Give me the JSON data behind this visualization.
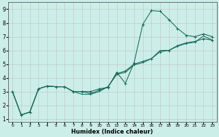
{
  "xlabel": "Humidex (Indice chaleur)",
  "bg_color": "#cceee8",
  "grid_color": "#c0c0c0",
  "line_color": "#1a6b5a",
  "xlim": [
    -0.5,
    23.5
  ],
  "ylim": [
    0.8,
    9.5
  ],
  "xticks": [
    0,
    1,
    2,
    3,
    4,
    5,
    6,
    7,
    8,
    9,
    10,
    11,
    12,
    13,
    14,
    15,
    16,
    17,
    18,
    19,
    20,
    21,
    22,
    23
  ],
  "yticks": [
    1,
    2,
    3,
    4,
    5,
    6,
    7,
    8,
    9
  ],
  "line1_x": [
    0,
    1,
    2,
    3,
    4,
    5,
    6,
    7,
    8,
    9,
    10,
    11,
    12,
    13,
    14,
    15,
    16,
    17,
    18,
    19,
    20,
    21,
    22,
    23
  ],
  "line1_y": [
    3.0,
    1.3,
    1.5,
    3.2,
    3.4,
    3.35,
    3.35,
    3.0,
    3.0,
    3.0,
    3.2,
    3.3,
    4.4,
    3.6,
    5.1,
    7.9,
    8.9,
    8.85,
    8.25,
    7.6,
    7.1,
    7.0,
    7.2,
    7.0
  ],
  "line2_x": [
    0,
    1,
    2,
    3,
    4,
    5,
    6,
    7,
    8,
    9,
    10,
    11,
    12,
    13,
    14,
    15,
    16,
    17,
    18,
    19,
    20,
    21,
    22,
    23
  ],
  "line2_y": [
    3.0,
    1.3,
    1.5,
    3.2,
    3.4,
    3.35,
    3.35,
    3.0,
    3.0,
    2.85,
    3.1,
    3.35,
    4.3,
    4.5,
    5.0,
    5.2,
    5.4,
    5.9,
    6.0,
    6.35,
    6.55,
    6.65,
    6.85,
    6.75
  ],
  "line3_x": [
    0,
    1,
    2,
    3,
    4,
    5,
    6,
    7,
    8,
    9,
    10,
    11,
    12,
    13,
    14,
    15,
    16,
    17,
    18,
    19,
    20,
    21,
    22,
    23
  ],
  "line3_y": [
    3.0,
    1.3,
    1.5,
    3.2,
    3.4,
    3.35,
    3.35,
    3.0,
    2.8,
    2.8,
    3.0,
    3.35,
    4.25,
    4.4,
    4.95,
    5.1,
    5.4,
    6.0,
    6.0,
    6.3,
    6.5,
    6.6,
    7.05,
    6.75
  ]
}
